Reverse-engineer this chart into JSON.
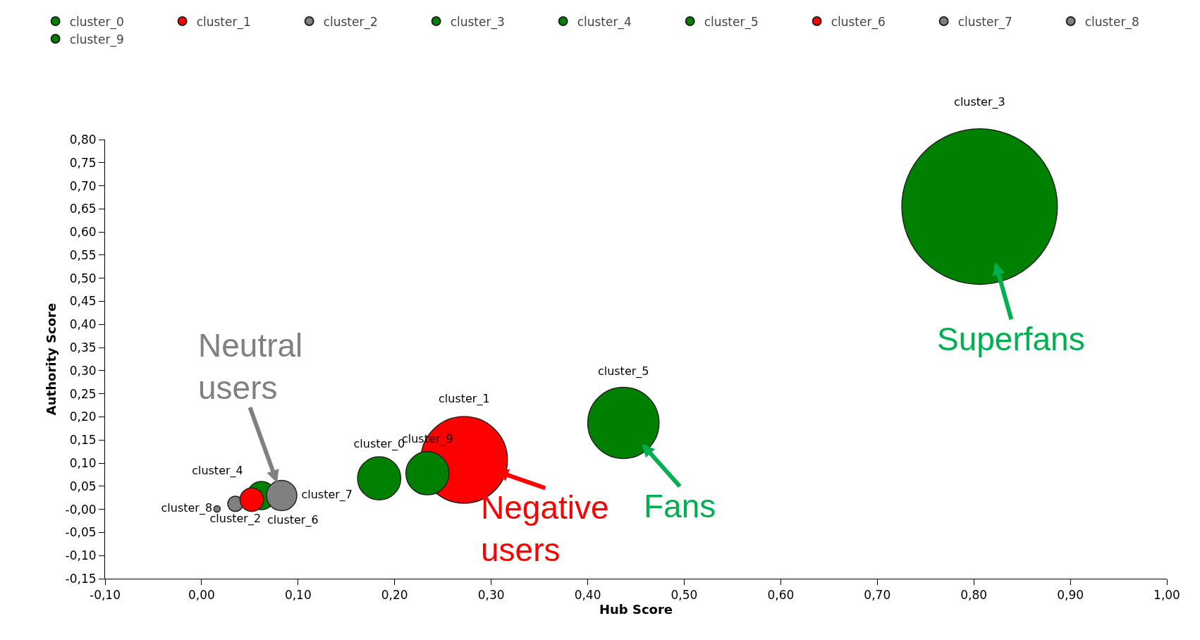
{
  "chart_data": {
    "type": "bubble",
    "xlabel": "Hub Score",
    "ylabel": "Authority Score",
    "legend": "top",
    "marker": "circle",
    "grid": false,
    "xlim": [
      -0.1,
      1.0
    ],
    "xticks": [
      {
        "value": -0.1,
        "label": "-0,10"
      },
      {
        "value": 0,
        "label": "0,00"
      },
      {
        "value": 0.1,
        "label": "0,10"
      },
      {
        "value": 0.2,
        "label": "0,20"
      },
      {
        "value": 0.3,
        "label": "0,30"
      },
      {
        "value": 0.4,
        "label": "0,40"
      },
      {
        "value": 0.5,
        "label": "0,50"
      },
      {
        "value": 0.6,
        "label": "0,60"
      },
      {
        "value": 0.7,
        "label": "0,70"
      },
      {
        "value": 0.8,
        "label": "0,80"
      },
      {
        "value": 0.9,
        "label": "0,90"
      },
      {
        "value": 1.0,
        "label": "1,00"
      }
    ],
    "ylim": [
      -0.15,
      0.8
    ],
    "yticks": [
      {
        "value": -0.15,
        "label": "-0,15"
      },
      {
        "value": -0.1,
        "label": "-0,10"
      },
      {
        "value": -0.05,
        "label": "-0,05"
      },
      {
        "value": 0,
        "label": "-0,00"
      },
      {
        "value": 0.05,
        "label": "0,05"
      },
      {
        "value": 0.1,
        "label": "0,10"
      },
      {
        "value": 0.15,
        "label": "0,15"
      },
      {
        "value": 0.2,
        "label": "0,20"
      },
      {
        "value": 0.25,
        "label": "0,25"
      },
      {
        "value": 0.3,
        "label": "0,30"
      },
      {
        "value": 0.35,
        "label": "0,35"
      },
      {
        "value": 0.4,
        "label": "0,40"
      },
      {
        "value": 0.45,
        "label": "0,45"
      },
      {
        "value": 0.5,
        "label": "0,50"
      },
      {
        "value": 0.55,
        "label": "0,55"
      },
      {
        "value": 0.6,
        "label": "0,60"
      },
      {
        "value": 0.65,
        "label": "0,65"
      },
      {
        "value": 0.7,
        "label": "0,70"
      },
      {
        "value": 0.75,
        "label": "0,75"
      },
      {
        "value": 0.8,
        "label": "0,80"
      }
    ],
    "series": [
      {
        "name": "cluster_0",
        "color": "#008000",
        "x": [
          0.184
        ],
        "values": [
          0.067
        ],
        "sizes": [
          0.077
        ]
      },
      {
        "name": "cluster_1",
        "color": "#ff0000",
        "x": [
          0.272
        ],
        "values": [
          0.107
        ],
        "sizes": [
          0.31
        ]
      },
      {
        "name": "cluster_2",
        "color": "#808080",
        "x": [
          0.035
        ],
        "values": [
          0.012
        ],
        "sizes": [
          0.0095
        ]
      },
      {
        "name": "cluster_3",
        "color": "#008000",
        "x": [
          0.806
        ],
        "values": [
          0.655
        ],
        "sizes": [
          1
        ]
      },
      {
        "name": "cluster_4",
        "color": "#008000",
        "x": [
          0.062
        ],
        "values": [
          0.03
        ],
        "sizes": [
          0.033
        ]
      },
      {
        "name": "cluster_5",
        "color": "#008000",
        "x": [
          0.437
        ],
        "values": [
          0.187
        ],
        "sizes": [
          0.21
        ]
      },
      {
        "name": "cluster_6",
        "color": "#ff0000",
        "x": [
          0.052
        ],
        "values": [
          0.021
        ],
        "sizes": [
          0.023
        ]
      },
      {
        "name": "cluster_7",
        "color": "#808080",
        "x": [
          0.083
        ],
        "values": [
          0.03
        ],
        "sizes": [
          0.038
        ]
      },
      {
        "name": "cluster_8",
        "color": "#808080",
        "x": [
          0.016
        ],
        "values": [
          0.001
        ],
        "sizes": [
          0.0017
        ]
      },
      {
        "name": "cluster_9",
        "color": "#008000",
        "x": [
          0.234
        ],
        "values": [
          0.078
        ],
        "sizes": [
          0.077
        ]
      }
    ],
    "annotations": [
      {
        "text": "Superfans",
        "x": 0.806,
        "y": 0.655
      },
      {
        "text": "Fans",
        "x": 0.437,
        "y": 0.187
      },
      {
        "text": "Negative users",
        "x": 0.272,
        "y": 0.107
      },
      {
        "text": "Neutral users",
        "x": 0.083,
        "y": 0.03
      }
    ]
  }
}
